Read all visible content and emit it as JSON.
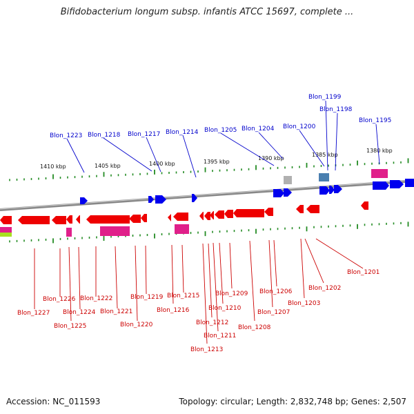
{
  "title": "Bifidobacterium longum subsp. infantis ATCC 15697, complete ...",
  "footer": {
    "accession": "Accession: NC_011593",
    "topology": "Topology: circular; Length: 2,832,748 bp; Genes: 2,507"
  },
  "scale_labels": [
    "1410 kbp",
    "1405 kbp",
    "1400 kbp",
    "1395 kbp",
    "1390 kbp",
    "1385 kbp",
    "1380 kbp"
  ],
  "top_gene_labels": [
    "Blon_1223",
    "Blon_1218",
    "Blon_1217",
    "Blon_1214",
    "Blon_1205",
    "Blon_1204",
    "Blon_1200",
    "Blon_1199",
    "Blon_1198",
    "Blon_1195"
  ],
  "bottom_gene_labels": [
    "Blon_1227",
    "Blon_1226",
    "Blon_1225",
    "Blon_1224",
    "Blon_1222",
    "Blon_1221",
    "Blon_1220",
    "Blon_1219",
    "Blon_1216",
    "Blon_1215",
    "Blon_1213",
    "Blon_1212",
    "Blon_1211",
    "Blon_1210",
    "Blon_1209",
    "Blon_1208",
    "Blon_1207",
    "Blon_1206",
    "Blon_1203",
    "Blon_1202",
    "Blon_1201"
  ],
  "colors": {
    "forward_label": "#0000cc",
    "reverse_label": "#cc0000",
    "forward_gene": "#0000ee",
    "reverse_gene": "#ee0000",
    "rna_gene": "#e0208a",
    "tick": "#228b22",
    "backbone": "#888888"
  }
}
